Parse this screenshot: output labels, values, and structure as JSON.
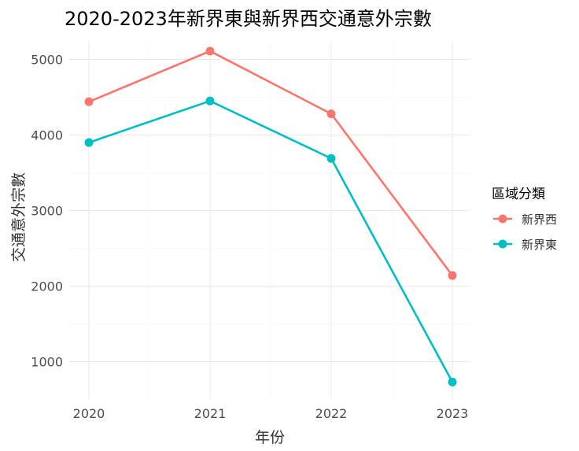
{
  "chart_data": {
    "type": "line",
    "title": "2020-2023年新界東與新界西交通意外宗數",
    "xlabel": "年份",
    "ylabel": "交通意外宗數",
    "categories": [
      "2020",
      "2021",
      "2022",
      "2023"
    ],
    "series": [
      {
        "name": "新界西",
        "color": "#F8766D",
        "values": [
          4440,
          5110,
          4280,
          2140
        ]
      },
      {
        "name": "新界東",
        "color": "#00BFC4",
        "values": [
          3900,
          4450,
          3690,
          730
        ]
      }
    ],
    "ylim": [
      500,
      5300
    ],
    "yticks": [
      1000,
      2000,
      3000,
      4000,
      5000
    ],
    "legend": {
      "title": "區域分類",
      "position": "right"
    },
    "grid": true
  }
}
